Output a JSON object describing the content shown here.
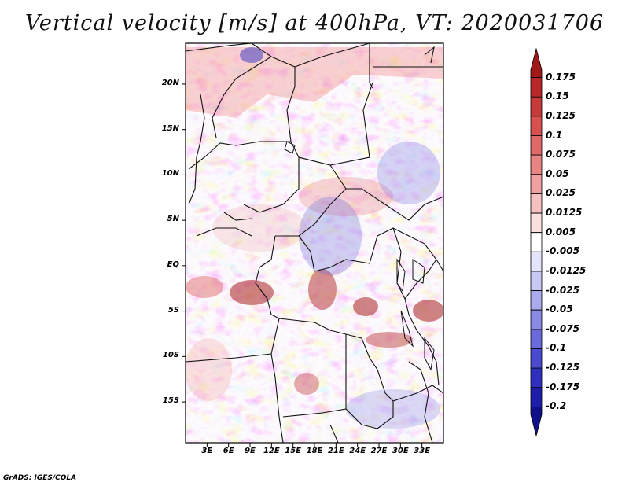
{
  "title": "Vertical velocity [m/s] at 400hPa, VT: 2020031706",
  "credit": "GrADS: IGES/COLA",
  "map": {
    "lat_labels": [
      "20N",
      "15N",
      "10N",
      "5N",
      "EQ",
      "5S",
      "10S",
      "15S"
    ],
    "lon_labels": [
      "3E",
      "6E",
      "9E",
      "12E",
      "15E",
      "18E",
      "21E",
      "24E",
      "27E",
      "30E",
      "33E"
    ],
    "lat_range": [
      -19.5,
      24.5
    ],
    "lon_range": [
      0,
      36
    ]
  },
  "colorbar": {
    "labels": [
      "0.175",
      "0.15",
      "0.125",
      "0.1",
      "0.075",
      "0.05",
      "0.025",
      "0.0125",
      "0.005",
      "-0.005",
      "-0.0125",
      "-0.025",
      "-0.05",
      "-0.075",
      "-0.1",
      "-0.125",
      "-0.175",
      "-0.2"
    ],
    "colors": [
      "#a01818",
      "#b82828",
      "#c83a3a",
      "#d85050",
      "#e06868",
      "#e88484",
      "#f0a0a0",
      "#f6c0c0",
      "#fbe0e0",
      "#ffffff",
      "#e4e4fa",
      "#c8c8f4",
      "#aaaaee",
      "#8a8ae6",
      "#6a6adc",
      "#4a4ad0",
      "#3030c0",
      "#1e1eaa",
      "#10108a"
    ]
  }
}
